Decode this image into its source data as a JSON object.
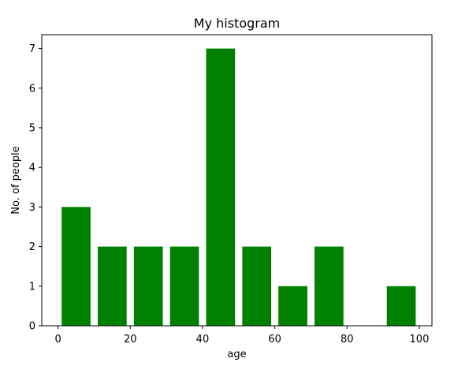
{
  "chart_data": {
    "type": "bar",
    "title": "My histogram",
    "xlabel": "age",
    "ylabel": "No. of people",
    "xlim": [
      -4.5,
      103.5
    ],
    "ylim": [
      0,
      7.35
    ],
    "xticks": [
      0,
      20,
      40,
      60,
      80,
      100
    ],
    "yticks": [
      0,
      1,
      2,
      3,
      4,
      5,
      6,
      7
    ],
    "grid": false,
    "legend": "none",
    "bar_color": "#008000",
    "bin_edges": [
      0,
      10,
      20,
      30,
      40,
      50,
      60,
      70,
      80,
      90,
      100
    ],
    "bar_width_fraction": 0.8,
    "categories": [
      "0-10",
      "10-20",
      "20-30",
      "30-40",
      "40-50",
      "50-60",
      "60-70",
      "70-80",
      "80-90",
      "90-100"
    ],
    "values": [
      3,
      2,
      2,
      2,
      7,
      2,
      1,
      2,
      0,
      1
    ]
  }
}
